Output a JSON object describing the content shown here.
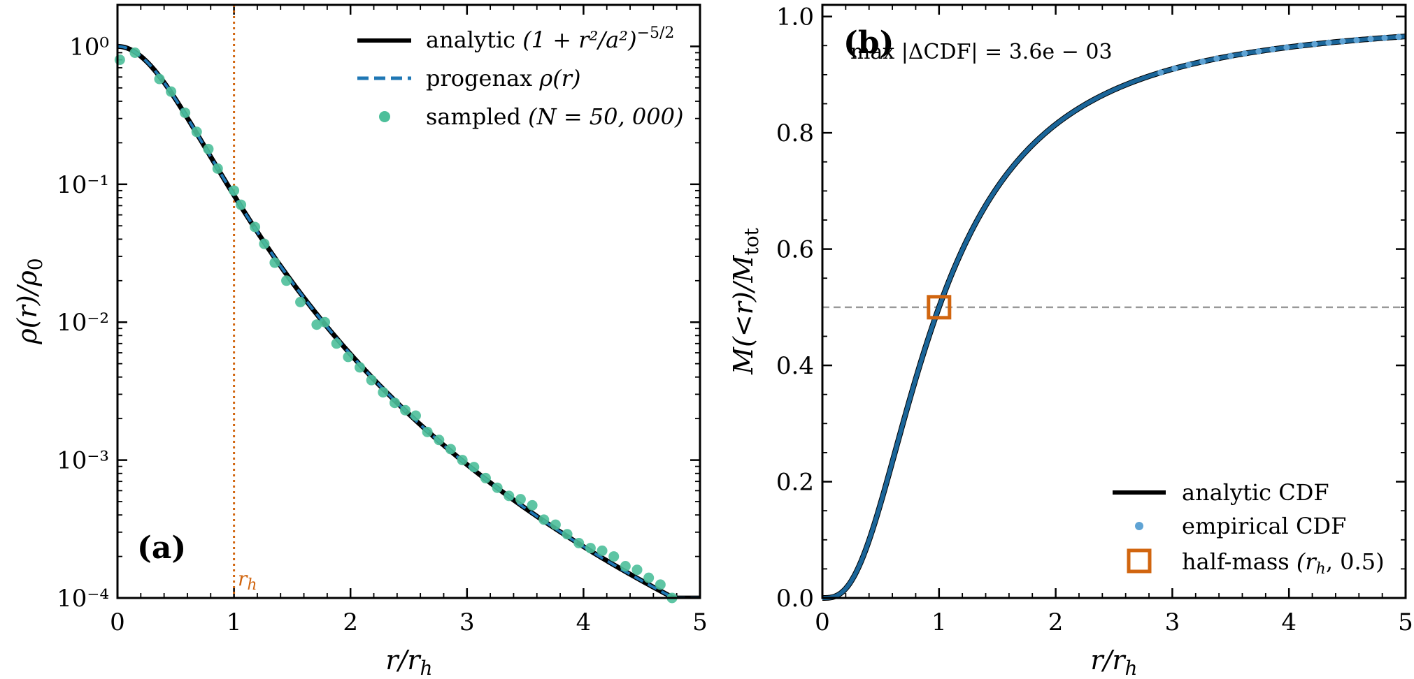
{
  "chart_data": [
    {
      "panel": "(a)",
      "type": "line",
      "xlabel": "r/r_h",
      "ylabel": "ρ(r)/ρ₀",
      "xlim": [
        0,
        5
      ],
      "ylim": [
        0.0001,
        2
      ],
      "yscale": "log",
      "x_ticks": [
        "0",
        "1",
        "2",
        "3",
        "4",
        "5"
      ],
      "y_ticks": [
        "10⁰",
        "10⁻¹",
        "10⁻²",
        "10⁻³",
        "10⁻⁴"
      ],
      "vline": {
        "x": 1,
        "label": "r_h",
        "color": "#d1650f"
      },
      "legend_position": "top-right",
      "series": [
        {
          "name": "analytic (1 + r²/a²)^(−5/2)",
          "style": "solid",
          "color": "#000000",
          "formula": "(1 + (1.305 r)^2)^(-2.5)",
          "x_range": [
            0,
            5
          ]
        },
        {
          "name": "progenax ρ(r)",
          "style": "dashed",
          "color": "#1f77b4",
          "formula": "(1 + (1.305 r)^2)^(-2.5)",
          "x_range": [
            0,
            5
          ]
        },
        {
          "name": "sampled (N = 50, 000)",
          "style": "markers",
          "color": "#4dbf9a",
          "x": [
            0.02,
            0.15,
            0.36,
            0.46,
            0.58,
            0.68,
            0.78,
            0.86,
            1.0,
            1.06,
            1.18,
            1.26,
            1.35,
            1.45,
            1.57,
            1.71,
            1.78,
            1.88,
            1.98,
            2.08,
            2.18,
            2.28,
            2.38,
            2.47,
            2.56,
            2.66,
            2.76,
            2.86,
            2.96,
            3.06,
            3.16,
            3.26,
            3.36,
            3.46,
            3.56,
            3.66,
            3.76,
            3.86,
            3.96,
            4.06,
            4.16,
            4.26,
            4.36,
            4.46,
            4.56,
            4.66,
            4.76,
            4.86
          ],
          "y": [
            0.8,
            0.9,
            0.58,
            0.47,
            0.33,
            0.24,
            0.18,
            0.13,
            0.09,
            0.071,
            0.049,
            0.037,
            0.027,
            0.02,
            0.014,
            0.0096,
            0.01,
            0.007,
            0.0056,
            0.0047,
            0.0038,
            0.0031,
            0.0026,
            0.0023,
            0.0021,
            0.0016,
            0.0014,
            0.0012,
            0.001,
            0.00089,
            0.00074,
            0.00063,
            0.00055,
            0.00052,
            0.00047,
            0.00037,
            0.00034,
            0.00029,
            0.00025,
            0.00023,
            0.00022,
            0.0002,
            0.00017,
            0.00016,
            0.00014,
            0.000125,
            0.0001,
            9e-05
          ]
        }
      ]
    },
    {
      "panel": "(b)",
      "type": "line",
      "xlabel": "r/r_h",
      "ylabel": "M(<r)/M_tot",
      "xlim": [
        0,
        5
      ],
      "ylim": [
        0,
        1.02
      ],
      "yscale": "linear",
      "x_ticks": [
        "0",
        "1",
        "2",
        "3",
        "4",
        "5"
      ],
      "y_ticks": [
        "0.0",
        "0.2",
        "0.4",
        "0.6",
        "0.8",
        "1.0"
      ],
      "hline": {
        "y": 0.5,
        "color": "#999999",
        "style": "dashed"
      },
      "annotation": "max |ΔCDF| = 3.6e − 03",
      "legend_position": "bottom-right",
      "series": [
        {
          "name": "analytic CDF",
          "style": "solid",
          "color": "#000000",
          "formula": "(1.305 r)^3 / (1 + (1.305 r)^2)^1.5",
          "x_range": [
            0,
            5
          ]
        },
        {
          "name": "empirical CDF",
          "style": "markers",
          "color": "#1f77b4",
          "formula": "(1.305 r)^3 / (1 + (1.305 r)^2)^1.5",
          "x_range": [
            0,
            5
          ]
        },
        {
          "name": "half-mass (r_h, 0.5)",
          "style": "square-marker",
          "color": "#d1650f",
          "x": [
            1.0
          ],
          "y": [
            0.5
          ]
        }
      ]
    }
  ],
  "legend_a": {
    "analytic": "analytic",
    "analytic_formula": "(1 + r²/a²)",
    "analytic_exp": "−5/2",
    "progenax": "progenax",
    "progenax_formula": "ρ(r)",
    "sampled": "sampled",
    "sampled_formula": "(N = 50, 000)"
  },
  "legend_b": {
    "analytic": "analytic CDF",
    "empirical": "empirical CDF",
    "halfmass": "half-mass",
    "halfmass_formula": "(r_h, 0.5)"
  },
  "panel_a_tag": "(a)",
  "panel_b_tag": "(b)",
  "annot_b": "max |ΔCDF| = 3.6e − 03",
  "rh_label": "r_h"
}
